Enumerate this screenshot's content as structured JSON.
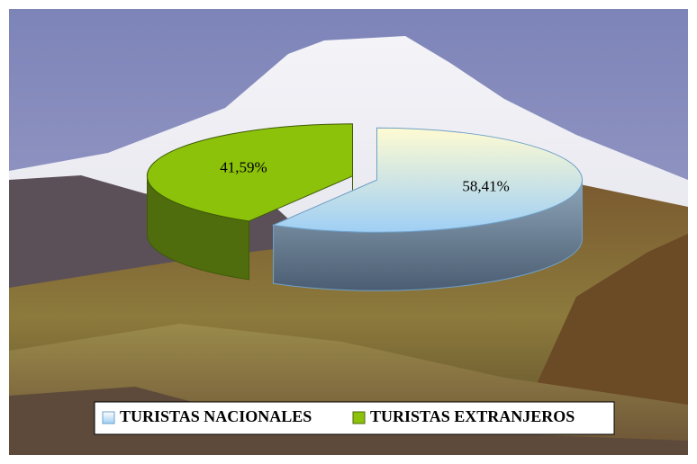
{
  "chart_data": {
    "type": "pie",
    "categories": [
      "TURISTAS NACIONALES",
      "TURISTAS EXTRANJEROS"
    ],
    "values": [
      58.41,
      41.59
    ],
    "value_labels": [
      "58,41%",
      "41,59%"
    ],
    "colors": [
      "#a8d4f5",
      "#8cc20a"
    ],
    "legend": "bottom"
  }
}
